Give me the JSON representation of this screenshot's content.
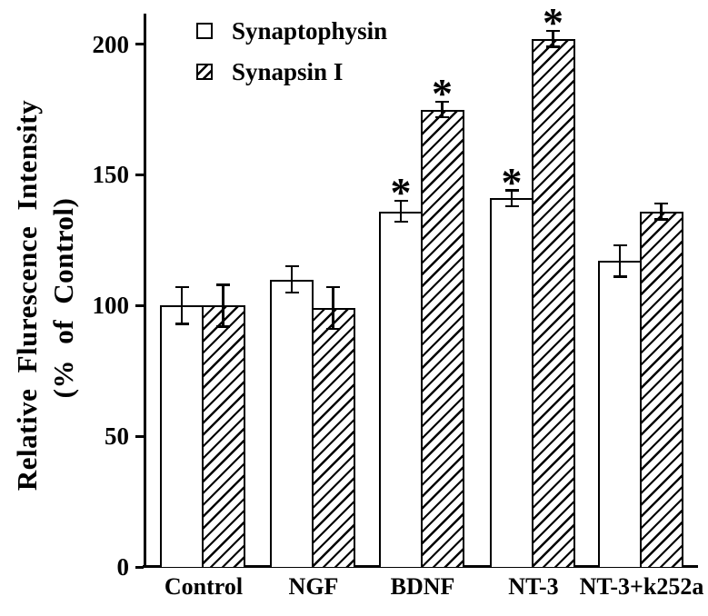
{
  "figure": {
    "background_color": "#ffffff",
    "ink_color": "#000000"
  },
  "chart_data": {
    "type": "bar",
    "title": "",
    "ylabel_line1": "Relative Flurescence Intensity",
    "ylabel_line2": "(% of Control)",
    "xlabel": "",
    "categories": [
      "Control",
      "NGF",
      "BDNF",
      "NT-3",
      "NT-3+k252a"
    ],
    "series": [
      {
        "name": "Synaptophysin",
        "style": "open",
        "values": [
          100,
          110,
          136,
          141,
          117
        ],
        "errors": [
          7,
          5,
          4,
          3,
          6
        ],
        "significant": [
          false,
          false,
          true,
          true,
          false
        ]
      },
      {
        "name": "Synapsin I",
        "style": "hatched",
        "values": [
          100,
          99,
          175,
          202,
          136
        ],
        "errors": [
          8,
          8,
          3,
          3,
          3
        ],
        "significant": [
          false,
          false,
          true,
          true,
          false
        ]
      }
    ],
    "y_ticks": [
      0,
      50,
      100,
      150,
      200
    ],
    "ylim": [
      0,
      211
    ],
    "significance_marker": "*",
    "error_bars": "both-directions-capped",
    "legend_position": "top-left-inside",
    "grid": false
  }
}
